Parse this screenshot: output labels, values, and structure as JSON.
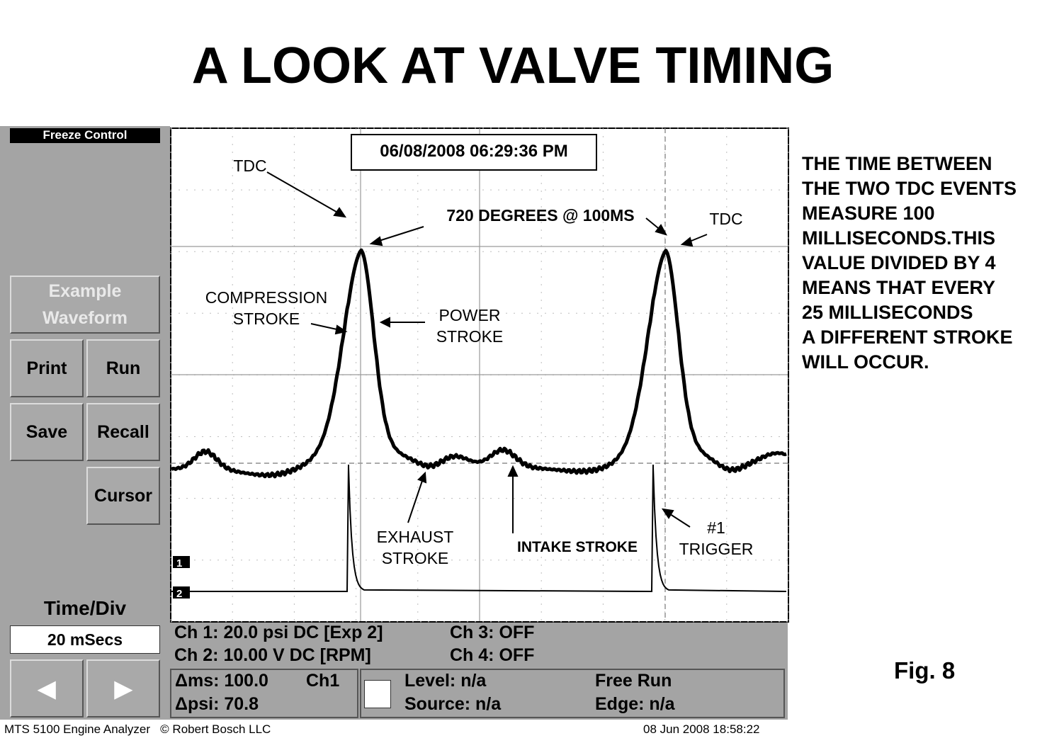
{
  "slide": {
    "title": "A LOOK AT VALVE TIMING",
    "note": "THE TIME BETWEEN\nTHE TWO TDC EVENTS\nMEASURE 100\nMILLISECONDS.THIS\nVALUE DIVIDED BY 4\nMEANS THAT EVERY\n25 MILLISECONDS\nA DIFFERENT STROKE\nWILL OCCUR.",
    "figure_label": "Fig. 8"
  },
  "sidebar": {
    "freeze_control": "Freeze Control",
    "example_waveform": "Example\nWaveform",
    "print": "Print",
    "run": "Run",
    "save": "Save",
    "recall": "Recall",
    "cursor": "Cursor",
    "time_div_label": "Time/Div",
    "time_div_value": "20 mSecs",
    "prev_glyph": "◀",
    "next_glyph": "▶"
  },
  "scope": {
    "timestamp": "06/08/2008 06:29:36 PM",
    "channel_markers": [
      "1",
      "2"
    ],
    "annotations": {
      "tdc_left": "TDC",
      "tdc_right": "TDC",
      "degrees": "720 DEGREES @ 100MS",
      "compression": "COMPRESSION\nSTROKE",
      "power": "POWER\nSTROKE",
      "exhaust": "EXHAUST\nSTROKE",
      "intake": "INTAKE STROKE",
      "trigger": "#1\nTRIGGER"
    },
    "colors": {
      "grid": "#9a9a9a",
      "trace": "#000000",
      "background": "#ffffff"
    }
  },
  "status": {
    "ch1": "Ch 1: 20.0 psi DC [Exp 2]",
    "ch2": "Ch 2: 10.00 V DC [RPM]",
    "ch3": "Ch 3: OFF",
    "ch4": "Ch 4: OFF",
    "delta_ms": "Δms: 100.0",
    "cursor_channel": "Ch1",
    "delta_psi": "Δpsi: 70.8",
    "level": "Level: n/a",
    "source": "Source: n/a",
    "mode": "Free Run",
    "edge": "Edge: n/a"
  },
  "footer": {
    "product": "MTS 5100 Engine Analyzer   © Robert Bosch LLC",
    "datetime": "08 Jun 2008 18:58:22"
  }
}
